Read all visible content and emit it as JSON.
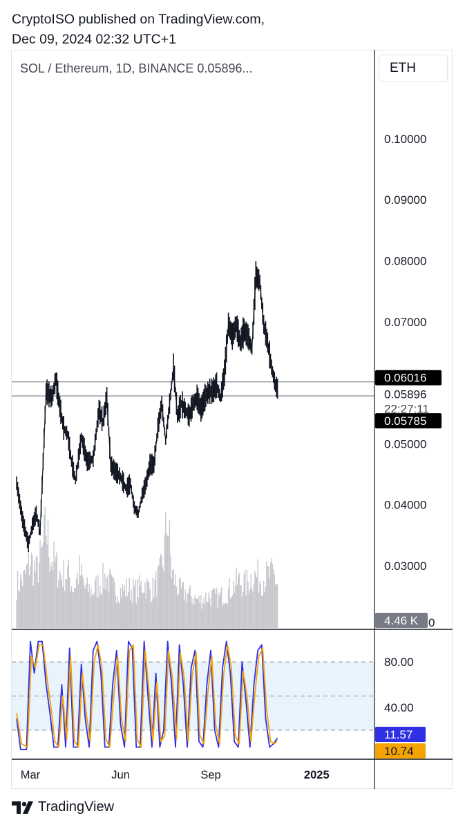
{
  "header": {
    "line1": "CryptoISO published on TradingView.com,",
    "line2": "Dec 09, 2024 02:32 UTC+1"
  },
  "chart_title": "SOL / Ethereum, 1D, BINANCE  0.05896...",
  "currency": "ETH",
  "brand": "TradingView",
  "colors": {
    "price_line": "#131722",
    "volume": "#c5c7cc",
    "k_line": "#2f2fe4",
    "d_line": "#f5a300",
    "band_fill": "#e8f3fc",
    "label_dark": "#000000",
    "label_gray": "#787b86"
  },
  "chart_data": [
    {
      "type": "line",
      "y_axis": {
        "ticks": [
          "0.10000",
          "0.09000",
          "0.08000",
          "0.07000",
          "0.05000",
          "0.04000",
          "0.03000"
        ],
        "tick_values": [
          0.1,
          0.09,
          0.08,
          0.07,
          0.05,
          0.04,
          0.03
        ],
        "scale": "linear",
        "range": [
          0.0197,
          0.1146
        ]
      },
      "x_axis": {
        "ticks": [
          "Mar",
          "Jun",
          "Sep",
          "2025"
        ],
        "tick_days": [
          14,
          106,
          198,
          306
        ],
        "range_days": [
          -5,
          365
        ]
      },
      "grid": false,
      "price_points": [
        [
          0,
          0.0435
        ],
        [
          6,
          0.0375
        ],
        [
          12,
          0.0335
        ],
        [
          16,
          0.0365
        ],
        [
          20,
          0.0385
        ],
        [
          24,
          0.0355
        ],
        [
          30,
          0.0585
        ],
        [
          36,
          0.0575
        ],
        [
          40,
          0.0605
        ],
        [
          44,
          0.056
        ],
        [
          48,
          0.0525
        ],
        [
          52,
          0.0515
        ],
        [
          56,
          0.047
        ],
        [
          60,
          0.044
        ],
        [
          66,
          0.051
        ],
        [
          72,
          0.047
        ],
        [
          78,
          0.0475
        ],
        [
          84,
          0.0555
        ],
        [
          88,
          0.0535
        ],
        [
          92,
          0.0575
        ],
        [
          96,
          0.0465
        ],
        [
          100,
          0.0455
        ],
        [
          106,
          0.0445
        ],
        [
          112,
          0.0425
        ],
        [
          116,
          0.0435
        ],
        [
          120,
          0.0395
        ],
        [
          124,
          0.0385
        ],
        [
          128,
          0.0415
        ],
        [
          132,
          0.0435
        ],
        [
          136,
          0.0465
        ],
        [
          140,
          0.0465
        ],
        [
          144,
          0.0525
        ],
        [
          148,
          0.0565
        ],
        [
          152,
          0.0505
        ],
        [
          156,
          0.0565
        ],
        [
          160,
          0.0625
        ],
        [
          164,
          0.0545
        ],
        [
          168,
          0.0565
        ],
        [
          172,
          0.0555
        ],
        [
          176,
          0.0545
        ],
        [
          180,
          0.0565
        ],
        [
          184,
          0.0575
        ],
        [
          188,
          0.0555
        ],
        [
          192,
          0.0575
        ],
        [
          196,
          0.0585
        ],
        [
          200,
          0.0585
        ],
        [
          204,
          0.0595
        ],
        [
          208,
          0.0575
        ],
        [
          212,
          0.0615
        ],
        [
          216,
          0.0695
        ],
        [
          220,
          0.0675
        ],
        [
          224,
          0.0695
        ],
        [
          228,
          0.0665
        ],
        [
          232,
          0.0685
        ],
        [
          236,
          0.0675
        ],
        [
          240,
          0.0655
        ],
        [
          244,
          0.0775
        ],
        [
          248,
          0.0765
        ],
        [
          252,
          0.0695
        ],
        [
          256,
          0.0665
        ],
        [
          260,
          0.0625
        ],
        [
          264,
          0.0595
        ],
        [
          266,
          0.05896
        ]
      ],
      "volume_points": [
        [
          0,
          0.35
        ],
        [
          8,
          0.4
        ],
        [
          14,
          0.55
        ],
        [
          20,
          0.45
        ],
        [
          26,
          0.6
        ],
        [
          30,
          0.82
        ],
        [
          34,
          0.6
        ],
        [
          40,
          0.5
        ],
        [
          46,
          0.42
        ],
        [
          52,
          0.45
        ],
        [
          58,
          0.32
        ],
        [
          64,
          0.46
        ],
        [
          70,
          0.32
        ],
        [
          78,
          0.3
        ],
        [
          84,
          0.36
        ],
        [
          92,
          0.42
        ],
        [
          98,
          0.32
        ],
        [
          106,
          0.3
        ],
        [
          114,
          0.32
        ],
        [
          122,
          0.3
        ],
        [
          130,
          0.36
        ],
        [
          138,
          0.3
        ],
        [
          146,
          0.42
        ],
        [
          150,
          0.56
        ],
        [
          154,
          0.92
        ],
        [
          158,
          0.45
        ],
        [
          166,
          0.3
        ],
        [
          176,
          0.27
        ],
        [
          186,
          0.22
        ],
        [
          196,
          0.26
        ],
        [
          206,
          0.24
        ],
        [
          216,
          0.3
        ],
        [
          226,
          0.38
        ],
        [
          234,
          0.35
        ],
        [
          240,
          0.42
        ],
        [
          244,
          0.42
        ],
        [
          250,
          0.4
        ],
        [
          256,
          0.42
        ],
        [
          262,
          0.43
        ],
        [
          266,
          0.36
        ]
      ],
      "horizontal_levels": [
        0.06016,
        0.05785
      ],
      "price_labels": [
        {
          "value": 0.06016,
          "text": "0.06016",
          "style": "dark"
        },
        {
          "value": 0.05896,
          "text": "0.05896",
          "style": "plain"
        },
        {
          "value": 0.05785,
          "text": "0.05785",
          "style": "dark"
        }
      ],
      "countdown": "22:27:11",
      "volume_label": "4.46 K",
      "axis_zero": "0"
    },
    {
      "type": "line",
      "y_axis": {
        "ticks": [
          "80.00",
          "40.00"
        ],
        "tick_values": [
          80,
          40
        ],
        "range": [
          -5,
          108
        ]
      },
      "bands": [
        20,
        50,
        80
      ],
      "series": [
        {
          "name": "",
          "color": "#2f2fe4",
          "points": [
            [
              0,
              30
            ],
            [
              4,
              3
            ],
            [
              10,
              3
            ],
            [
              14,
              98
            ],
            [
              18,
              70
            ],
            [
              22,
              98
            ],
            [
              26,
              98
            ],
            [
              30,
              60
            ],
            [
              34,
              35
            ],
            [
              38,
              5
            ],
            [
              42,
              5
            ],
            [
              46,
              60
            ],
            [
              50,
              5
            ],
            [
              54,
              92
            ],
            [
              58,
              5
            ],
            [
              62,
              5
            ],
            [
              66,
              78
            ],
            [
              70,
              30
            ],
            [
              74,
              5
            ],
            [
              78,
              90
            ],
            [
              82,
              98
            ],
            [
              86,
              70
            ],
            [
              90,
              5
            ],
            [
              94,
              5
            ],
            [
              98,
              60
            ],
            [
              102,
              90
            ],
            [
              106,
              25
            ],
            [
              110,
              5
            ],
            [
              114,
              98
            ],
            [
              118,
              92
            ],
            [
              122,
              5
            ],
            [
              126,
              5
            ],
            [
              130,
              98
            ],
            [
              134,
              50
            ],
            [
              138,
              5
            ],
            [
              142,
              70
            ],
            [
              146,
              5
            ],
            [
              150,
              20
            ],
            [
              154,
              98
            ],
            [
              158,
              60
            ],
            [
              162,
              5
            ],
            [
              166,
              95
            ],
            [
              170,
              60
            ],
            [
              174,
              5
            ],
            [
              178,
              75
            ],
            [
              182,
              90
            ],
            [
              186,
              10
            ],
            [
              190,
              5
            ],
            [
              194,
              60
            ],
            [
              198,
              90
            ],
            [
              202,
              20
            ],
            [
              206,
              5
            ],
            [
              210,
              75
            ],
            [
              214,
              98
            ],
            [
              218,
              70
            ],
            [
              222,
              10
            ],
            [
              226,
              5
            ],
            [
              230,
              80
            ],
            [
              234,
              45
            ],
            [
              238,
              5
            ],
            [
              242,
              60
            ],
            [
              246,
              90
            ],
            [
              250,
              95
            ],
            [
              254,
              30
            ],
            [
              258,
              5
            ],
            [
              262,
              8
            ],
            [
              266,
              13
            ]
          ]
        },
        {
          "name": "",
          "color": "#f5a300",
          "points": [
            [
              0,
              35
            ],
            [
              5,
              8
            ],
            [
              11,
              5
            ],
            [
              15,
              85
            ],
            [
              19,
              75
            ],
            [
              23,
              95
            ],
            [
              27,
              95
            ],
            [
              31,
              65
            ],
            [
              35,
              40
            ],
            [
              39,
              10
            ],
            [
              43,
              5
            ],
            [
              47,
              50
            ],
            [
              51,
              12
            ],
            [
              55,
              85
            ],
            [
              59,
              10
            ],
            [
              63,
              5
            ],
            [
              67,
              70
            ],
            [
              71,
              35
            ],
            [
              75,
              10
            ],
            [
              79,
              80
            ],
            [
              83,
              95
            ],
            [
              87,
              75
            ],
            [
              91,
              12
            ],
            [
              95,
              5
            ],
            [
              99,
              50
            ],
            [
              103,
              85
            ],
            [
              107,
              30
            ],
            [
              111,
              10
            ],
            [
              115,
              90
            ],
            [
              119,
              95
            ],
            [
              123,
              12
            ],
            [
              127,
              5
            ],
            [
              131,
              90
            ],
            [
              135,
              55
            ],
            [
              139,
              10
            ],
            [
              143,
              62
            ],
            [
              147,
              10
            ],
            [
              151,
              15
            ],
            [
              155,
              90
            ],
            [
              159,
              65
            ],
            [
              163,
              12
            ],
            [
              167,
              88
            ],
            [
              171,
              65
            ],
            [
              175,
              10
            ],
            [
              179,
              68
            ],
            [
              183,
              88
            ],
            [
              187,
              15
            ],
            [
              191,
              8
            ],
            [
              195,
              52
            ],
            [
              199,
              85
            ],
            [
              203,
              25
            ],
            [
              207,
              8
            ],
            [
              211,
              68
            ],
            [
              215,
              95
            ],
            [
              219,
              75
            ],
            [
              223,
              15
            ],
            [
              227,
              8
            ],
            [
              231,
              72
            ],
            [
              235,
              50
            ],
            [
              239,
              10
            ],
            [
              243,
              52
            ],
            [
              247,
              85
            ],
            [
              251,
              92
            ],
            [
              255,
              38
            ],
            [
              259,
              10
            ],
            [
              263,
              8
            ],
            [
              266,
              11
            ]
          ]
        }
      ],
      "value_labels": [
        {
          "text": "11.57",
          "value": 11.57,
          "color": "#2f2fe4"
        },
        {
          "text": "10.74",
          "value": 10.74,
          "color": "#f5a300"
        }
      ]
    }
  ]
}
